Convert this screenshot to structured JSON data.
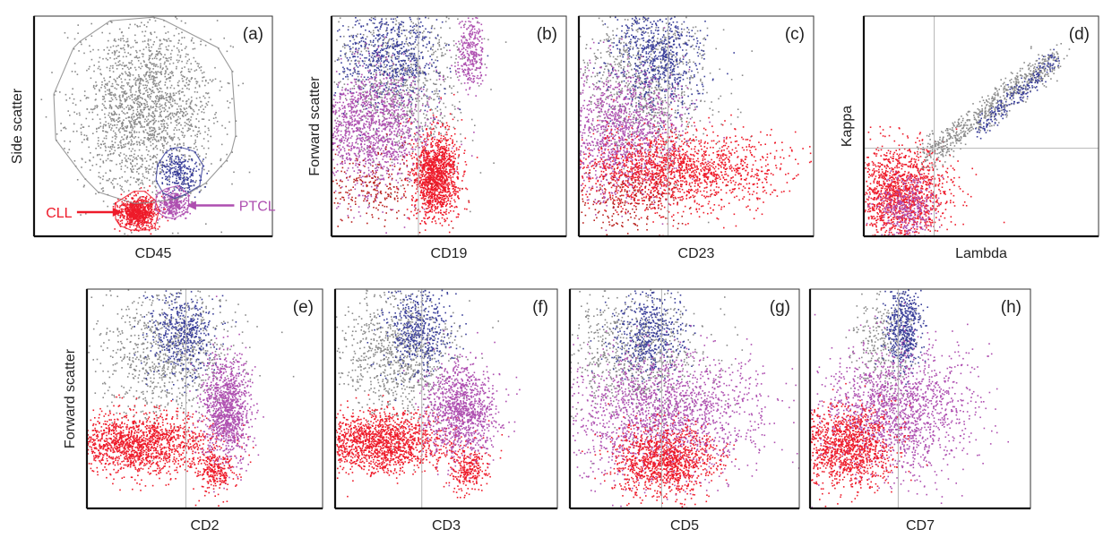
{
  "figure": {
    "background": "#ffffff"
  },
  "colors": {
    "granulocyte": "#8a8a8a",
    "t_cell": "#3a3f9a",
    "cll": "#ee1b2a",
    "ptcl": "#ae4fb0"
  },
  "chart_data": [
    {
      "id": "a",
      "panel_label": "(a)",
      "type": "scatter",
      "xlabel": "CD45",
      "ylabel": "Side scatter",
      "xlim": [
        0,
        100
      ],
      "ylim": [
        0,
        100
      ],
      "grid": false,
      "annotations": [
        {
          "text": "CLL",
          "color": "#ee1b2a"
        },
        {
          "text": "PTCL",
          "color": "#ae4fb0"
        }
      ],
      "series": [
        {
          "name": "",
          "color": "#8a8a8a",
          "points": 1900,
          "center": [
            47,
            58
          ],
          "spread": [
            14,
            20
          ],
          "gate": true
        },
        {
          "name": "",
          "color": "#3a3f9a",
          "points": 260,
          "center": [
            61,
            29
          ],
          "spread": [
            4,
            5
          ],
          "gate": true
        },
        {
          "name": "CLL",
          "color": "#ee1b2a",
          "points": 800,
          "center": [
            43,
            11
          ],
          "spread": [
            4,
            3.5
          ],
          "gate": true
        },
        {
          "name": "PTCL",
          "color": "#ae4fb0",
          "points": 300,
          "center": [
            58,
            15
          ],
          "spread": [
            3,
            3
          ],
          "gate": true
        }
      ]
    },
    {
      "id": "b",
      "panel_label": "(b)",
      "type": "scatter",
      "xlabel": "CD19",
      "ylabel": "Forward scatter",
      "xlim": [
        0,
        100
      ],
      "ylim": [
        0,
        100
      ],
      "grid": false,
      "quadrant": {
        "x": 37,
        "y": null
      },
      "series": [
        {
          "name": "",
          "color": "#8a8a8a",
          "points": 900,
          "center": [
            28,
            70
          ],
          "spread": [
            14,
            18
          ]
        },
        {
          "name": "",
          "color": "#3a3f9a",
          "points": 700,
          "center": [
            24,
            82
          ],
          "spread": [
            11,
            12
          ]
        },
        {
          "name": "",
          "color": "#ae4fb0",
          "points": 1400,
          "center": [
            17,
            50
          ],
          "spread": [
            13,
            14
          ]
        },
        {
          "name": "",
          "color": "#ae4fb0",
          "points": 300,
          "center": [
            59,
            84
          ],
          "spread": [
            3,
            9
          ]
        },
        {
          "name": "",
          "color": "#ee1b2a",
          "points": 1300,
          "center": [
            44,
            28
          ],
          "spread": [
            5,
            10
          ]
        },
        {
          "name": "",
          "color": "#b8201d",
          "points": 250,
          "center": [
            17,
            22
          ],
          "spread": [
            12,
            8
          ]
        }
      ]
    },
    {
      "id": "c",
      "panel_label": "(c)",
      "type": "scatter",
      "xlabel": "CD23",
      "ylabel": "",
      "xlim": [
        0,
        100
      ],
      "ylim": [
        0,
        100
      ],
      "grid": false,
      "quadrant": {
        "x": 38,
        "y": null
      },
      "series": [
        {
          "name": "",
          "color": "#8a8a8a",
          "points": 900,
          "center": [
            28,
            70
          ],
          "spread": [
            15,
            18
          ]
        },
        {
          "name": "",
          "color": "#3a3f9a",
          "points": 700,
          "center": [
            33,
            82
          ],
          "spread": [
            9,
            12
          ]
        },
        {
          "name": "",
          "color": "#ae4fb0",
          "points": 1300,
          "center": [
            18,
            47
          ],
          "spread": [
            13,
            15
          ]
        },
        {
          "name": "",
          "color": "#ee1b2a",
          "points": 1600,
          "center": [
            42,
            30
          ],
          "spread": [
            21,
            9
          ]
        },
        {
          "name": "",
          "color": "#b8201d",
          "points": 250,
          "center": [
            22,
            17
          ],
          "spread": [
            13,
            7
          ]
        }
      ]
    },
    {
      "id": "d",
      "panel_label": "(d)",
      "type": "scatter",
      "xlabel": "Lambda",
      "ylabel": "Kappa",
      "xlim": [
        0,
        100
      ],
      "ylim": [
        0,
        100
      ],
      "grid": false,
      "quadrant": {
        "x": 30,
        "y": 40
      },
      "series": [
        {
          "name": "",
          "color": "#ee1b2a",
          "points": 1500,
          "center": [
            16,
            19
          ],
          "spread": [
            10,
            11
          ]
        },
        {
          "name": "",
          "color": "#ae4fb0",
          "points": 350,
          "center": [
            18,
            14
          ],
          "spread": [
            6,
            7
          ]
        },
        {
          "name": "",
          "color": "#8a8a8a",
          "points": 700,
          "diagonal": [
            [
              25,
              35
            ],
            [
              82,
              82
            ]
          ],
          "width": 3.5
        },
        {
          "name": "",
          "color": "#3a3f9a",
          "points": 220,
          "diagonal": [
            [
              48,
              48
            ],
            [
              82,
              82
            ]
          ],
          "width": 2.5
        }
      ]
    },
    {
      "id": "e",
      "panel_label": "(e)",
      "type": "scatter",
      "xlabel": "CD2",
      "ylabel": "Forward scatter",
      "xlim": [
        0,
        100
      ],
      "ylim": [
        0,
        100
      ],
      "grid": false,
      "quadrant": {
        "x": 42,
        "y": null
      },
      "series": [
        {
          "name": "",
          "color": "#8a8a8a",
          "points": 900,
          "center": [
            34,
            72
          ],
          "spread": [
            14,
            15
          ]
        },
        {
          "name": "",
          "color": "#3a3f9a",
          "points": 500,
          "center": [
            40,
            80
          ],
          "spread": [
            7,
            10
          ]
        },
        {
          "name": "",
          "color": "#ee1b2a",
          "points": 1600,
          "center": [
            22,
            30
          ],
          "spread": [
            16,
            7
          ]
        },
        {
          "name": "",
          "color": "#ae4fb0",
          "points": 1100,
          "center": [
            59,
            45
          ],
          "spread": [
            5,
            12
          ]
        },
        {
          "name": "",
          "color": "#ee1b2a",
          "points": 250,
          "center": [
            54,
            17
          ],
          "spread": [
            4,
            5
          ]
        }
      ]
    },
    {
      "id": "f",
      "panel_label": "(f)",
      "type": "scatter",
      "xlabel": "CD3",
      "ylabel": "",
      "xlim": [
        0,
        100
      ],
      "ylim": [
        0,
        100
      ],
      "grid": false,
      "quadrant": {
        "x": 39,
        "y": null
      },
      "series": [
        {
          "name": "",
          "color": "#8a8a8a",
          "points": 900,
          "center": [
            28,
            70
          ],
          "spread": [
            13,
            15
          ]
        },
        {
          "name": "",
          "color": "#3a3f9a",
          "points": 500,
          "center": [
            37,
            82
          ],
          "spread": [
            7,
            10
          ]
        },
        {
          "name": "",
          "color": "#ee1b2a",
          "points": 1600,
          "center": [
            20,
            30
          ],
          "spread": [
            16,
            7
          ]
        },
        {
          "name": "",
          "color": "#ae4fb0",
          "points": 1100,
          "center": [
            57,
            45
          ],
          "spread": [
            8,
            11
          ]
        },
        {
          "name": "",
          "color": "#ee1b2a",
          "points": 250,
          "center": [
            60,
            18
          ],
          "spread": [
            4,
            5
          ]
        }
      ]
    },
    {
      "id": "g",
      "panel_label": "(g)",
      "type": "scatter",
      "xlabel": "CD5",
      "ylabel": "",
      "xlim": [
        0,
        100
      ],
      "ylim": [
        0,
        100
      ],
      "grid": false,
      "quadrant": {
        "x": 40,
        "y": null
      },
      "series": [
        {
          "name": "",
          "color": "#8a8a8a",
          "points": 800,
          "center": [
            28,
            72
          ],
          "spread": [
            15,
            15
          ]
        },
        {
          "name": "",
          "color": "#3a3f9a",
          "points": 500,
          "center": [
            34,
            80
          ],
          "spread": [
            8,
            10
          ]
        },
        {
          "name": "",
          "color": "#ae4fb0",
          "points": 1800,
          "center": [
            40,
            43
          ],
          "spread": [
            22,
            14
          ]
        },
        {
          "name": "",
          "color": "#ee1b2a",
          "points": 1200,
          "center": [
            41,
            22
          ],
          "spread": [
            11,
            8
          ]
        }
      ]
    },
    {
      "id": "h",
      "panel_label": "(h)",
      "type": "scatter",
      "xlabel": "CD7",
      "ylabel": "",
      "xlim": [
        0,
        100
      ],
      "ylim": [
        0,
        100
      ],
      "grid": false,
      "quadrant": {
        "x": 40,
        "y": null
      },
      "series": [
        {
          "name": "",
          "color": "#8a8a8a",
          "points": 300,
          "center": [
            34,
            75
          ],
          "spread": [
            7,
            12
          ]
        },
        {
          "name": "",
          "color": "#3a3f9a",
          "points": 500,
          "center": [
            42,
            83
          ],
          "spread": [
            4,
            9
          ]
        },
        {
          "name": "",
          "color": "#ae4fb0",
          "points": 1600,
          "center": [
            38,
            45
          ],
          "spread": [
            17,
            14
          ]
        },
        {
          "name": "",
          "color": "#ee1b2a",
          "points": 1200,
          "center": [
            16,
            28
          ],
          "spread": [
            11,
            9
          ]
        }
      ]
    }
  ]
}
